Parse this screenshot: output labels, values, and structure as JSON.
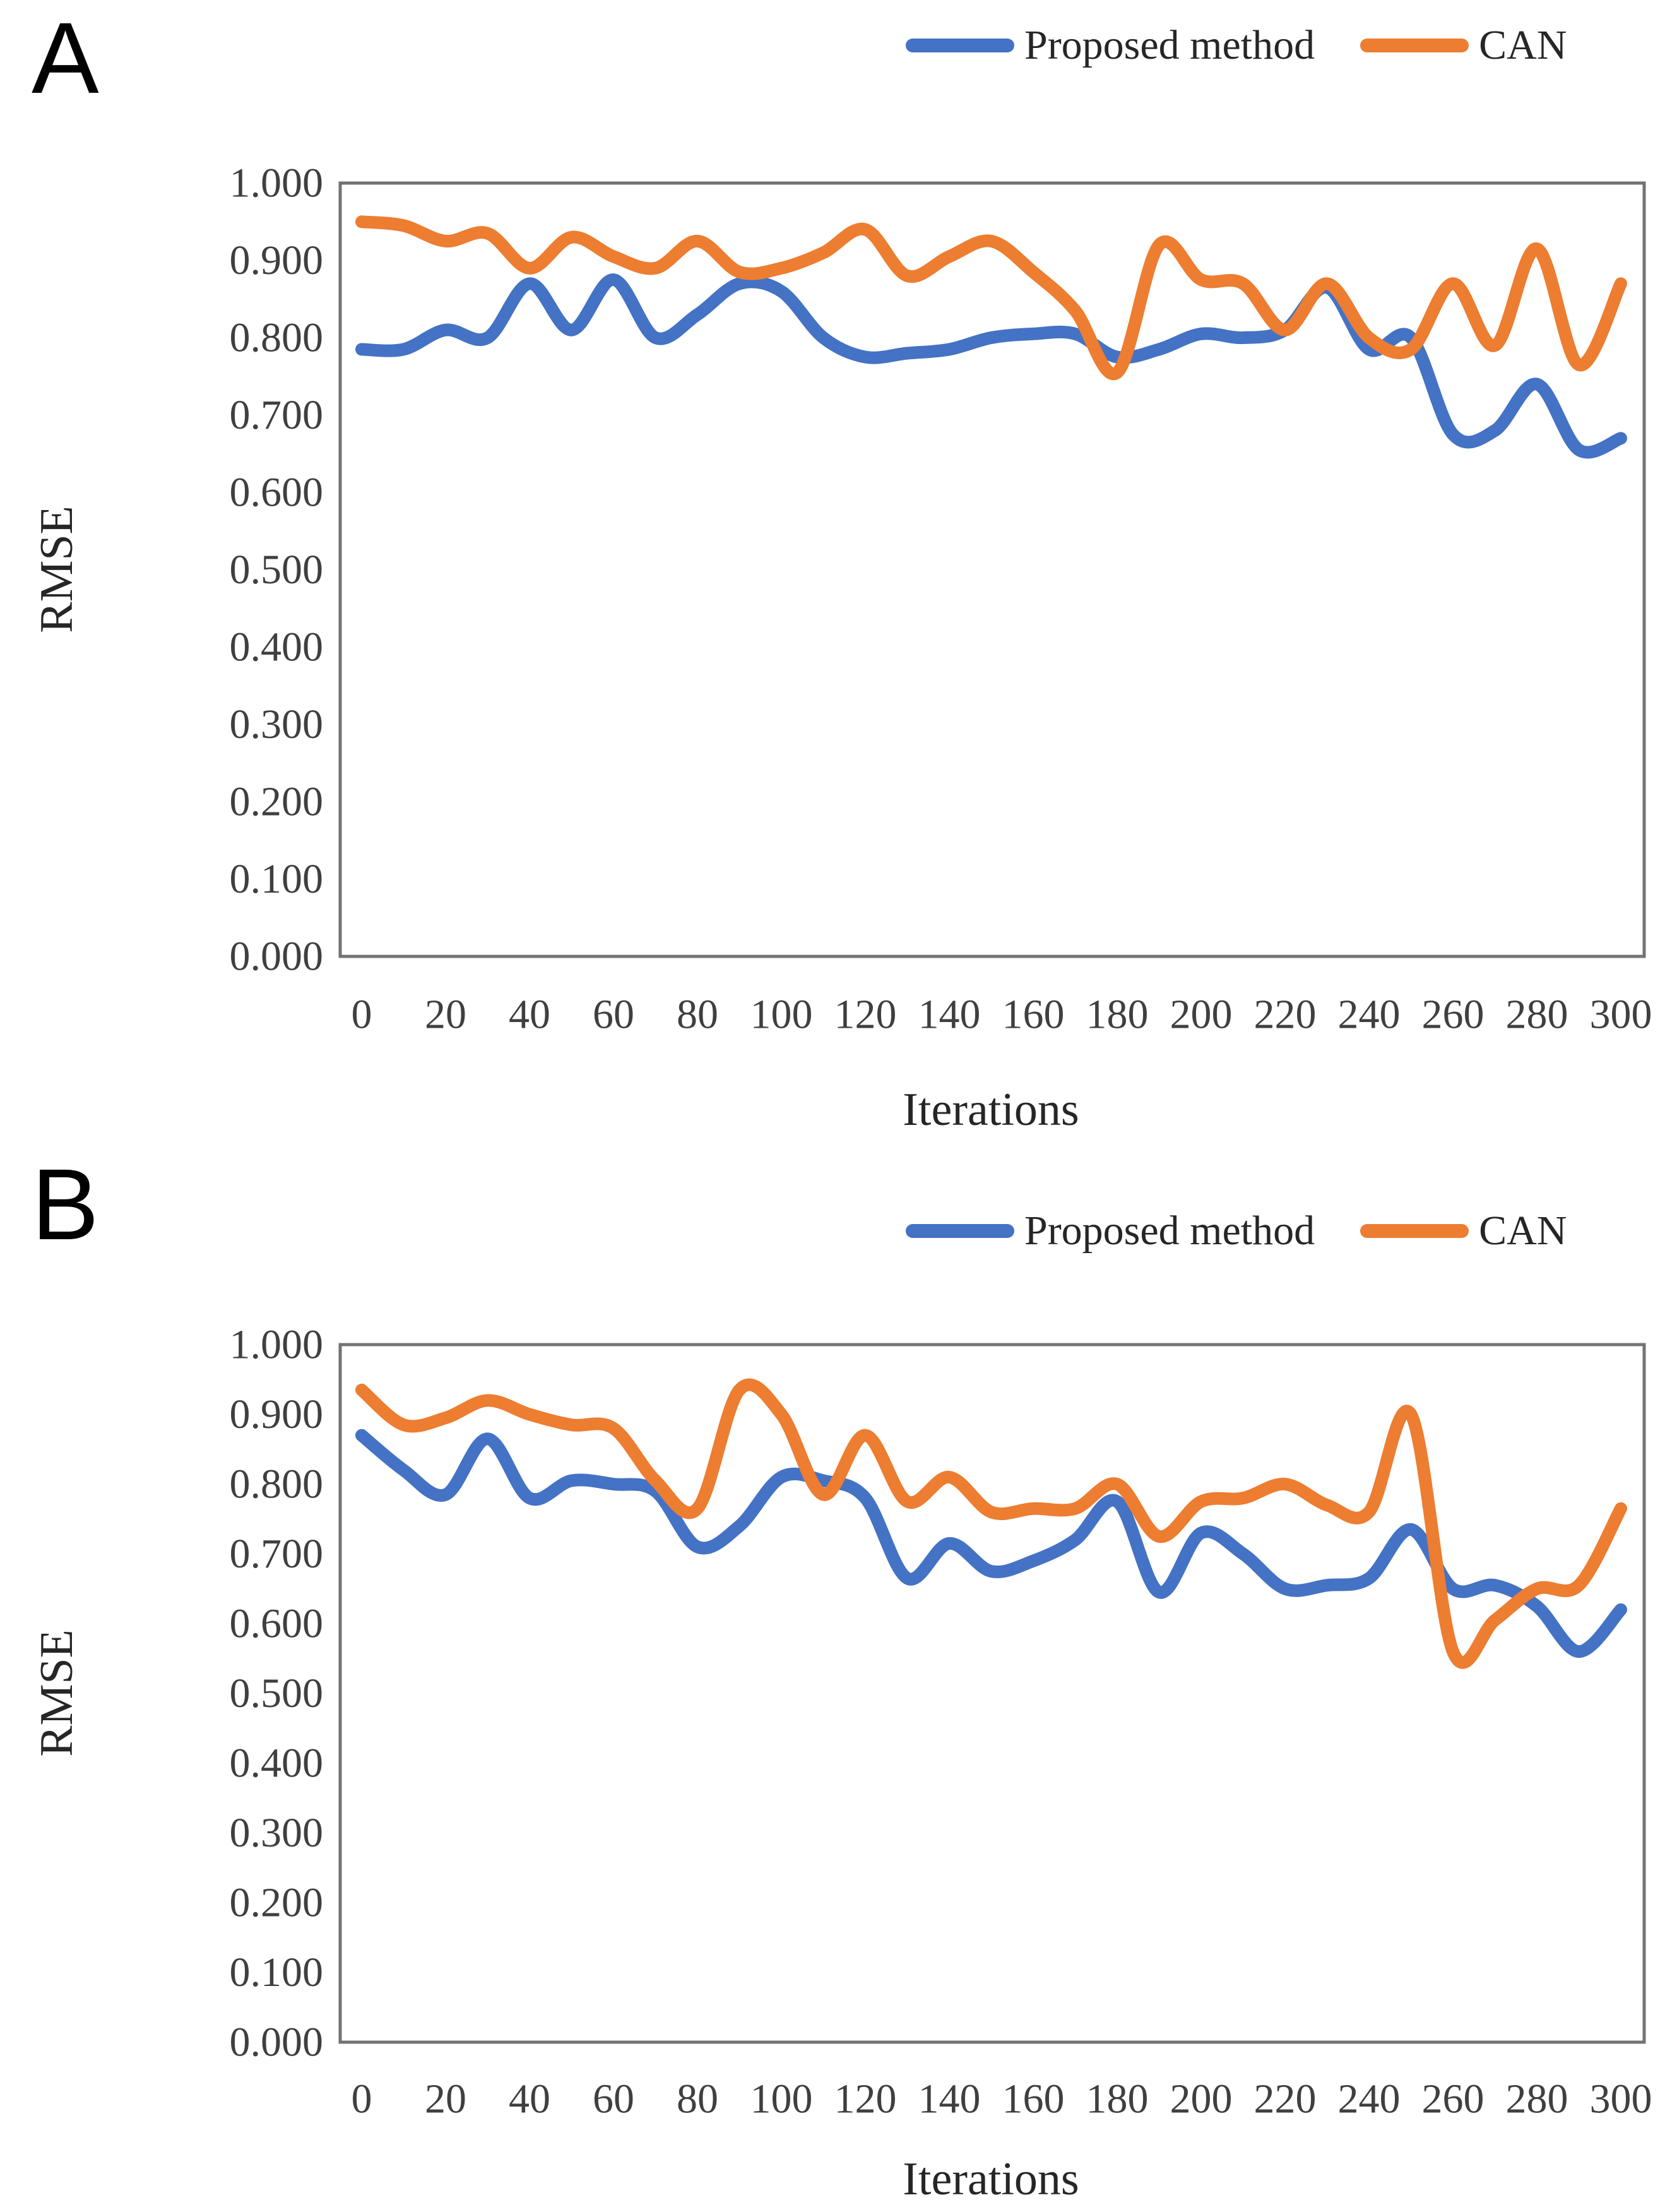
{
  "colors": {
    "proposed_method_line": "#4472C4",
    "can_line": "#ED7D31",
    "axis_frame": "#737373",
    "tick_text": "#3f3f3f"
  },
  "panels": {
    "a": {
      "letter": "A",
      "legend": [
        {
          "label": "Proposed method",
          "color": "#4472C4"
        },
        {
          "label": "CAN",
          "color": "#ED7D31"
        }
      ],
      "ylabel": "RMSE",
      "xlabel": "Iterations"
    },
    "b": {
      "letter": "B",
      "legend": [
        {
          "label": "Proposed method",
          "color": "#4472C4"
        },
        {
          "label": "CAN",
          "color": "#ED7D31"
        }
      ],
      "ylabel": "RMSE",
      "xlabel": "Iterations"
    }
  },
  "chart_data": [
    {
      "type": "line",
      "panel": "A",
      "title": "",
      "xlabel": "Iterations",
      "ylabel": "RMSE",
      "xlim": [
        0,
        300
      ],
      "ylim": [
        0,
        1
      ],
      "grid": false,
      "legend_position": "top-right",
      "x_ticks": [
        "0",
        "20",
        "40",
        "60",
        "80",
        "100",
        "120",
        "140",
        "160",
        "180",
        "200",
        "220",
        "240",
        "260",
        "280",
        "300"
      ],
      "y_ticks": [
        "1.000",
        "0.900",
        "0.800",
        "0.700",
        "0.600",
        "0.500",
        "0.400",
        "0.300",
        "0.200",
        "0.100",
        "0.000"
      ],
      "x": [
        0,
        10,
        20,
        30,
        40,
        50,
        60,
        70,
        80,
        90,
        100,
        110,
        120,
        130,
        140,
        150,
        160,
        170,
        180,
        190,
        200,
        210,
        220,
        230,
        240,
        250,
        260,
        270,
        280,
        290,
        300
      ],
      "series": [
        {
          "name": "Proposed method",
          "color": "#4472C4",
          "values": [
            0.785,
            0.785,
            0.81,
            0.8,
            0.87,
            0.81,
            0.875,
            0.8,
            0.83,
            0.87,
            0.86,
            0.8,
            0.775,
            0.78,
            0.785,
            0.8,
            0.805,
            0.805,
            0.775,
            0.785,
            0.805,
            0.8,
            0.81,
            0.865,
            0.785,
            0.8,
            0.675,
            0.68,
            0.74,
            0.655,
            0.67
          ]
        },
        {
          "name": "CAN",
          "color": "#ED7D31",
          "values": [
            0.95,
            0.945,
            0.925,
            0.935,
            0.89,
            0.93,
            0.905,
            0.89,
            0.925,
            0.885,
            0.89,
            0.91,
            0.94,
            0.88,
            0.905,
            0.925,
            0.885,
            0.835,
            0.755,
            0.92,
            0.875,
            0.87,
            0.81,
            0.87,
            0.8,
            0.785,
            0.87,
            0.79,
            0.915,
            0.765,
            0.87
          ]
        }
      ]
    },
    {
      "type": "line",
      "panel": "B",
      "title": "",
      "xlabel": "Iterations",
      "ylabel": "RMSE",
      "xlim": [
        0,
        300
      ],
      "ylim": [
        0,
        1
      ],
      "grid": false,
      "legend_position": "top-right",
      "x_ticks": [
        "0",
        "20",
        "40",
        "60",
        "80",
        "100",
        "120",
        "140",
        "160",
        "180",
        "200",
        "220",
        "240",
        "260",
        "280",
        "300"
      ],
      "y_ticks": [
        "1.000",
        "0.900",
        "0.800",
        "0.700",
        "0.600",
        "0.500",
        "0.400",
        "0.300",
        "0.200",
        "0.100",
        "0.000"
      ],
      "x": [
        0,
        10,
        20,
        30,
        40,
        50,
        60,
        70,
        80,
        90,
        100,
        110,
        120,
        130,
        140,
        150,
        160,
        170,
        180,
        190,
        200,
        210,
        220,
        230,
        240,
        250,
        260,
        270,
        280,
        290,
        300
      ],
      "series": [
        {
          "name": "Proposed method",
          "color": "#4472C4",
          "values": [
            0.87,
            0.82,
            0.785,
            0.865,
            0.78,
            0.805,
            0.8,
            0.79,
            0.71,
            0.74,
            0.81,
            0.805,
            0.78,
            0.665,
            0.715,
            0.675,
            0.69,
            0.72,
            0.775,
            0.645,
            0.73,
            0.7,
            0.65,
            0.655,
            0.665,
            0.735,
            0.65,
            0.655,
            0.625,
            0.56,
            0.62
          ]
        },
        {
          "name": "CAN",
          "color": "#ED7D31",
          "values": [
            0.935,
            0.885,
            0.895,
            0.92,
            0.9,
            0.885,
            0.88,
            0.805,
            0.765,
            0.935,
            0.9,
            0.785,
            0.87,
            0.775,
            0.81,
            0.76,
            0.765,
            0.765,
            0.8,
            0.725,
            0.775,
            0.78,
            0.8,
            0.77,
            0.76,
            0.9,
            0.56,
            0.605,
            0.65,
            0.655,
            0.765
          ]
        }
      ]
    }
  ]
}
